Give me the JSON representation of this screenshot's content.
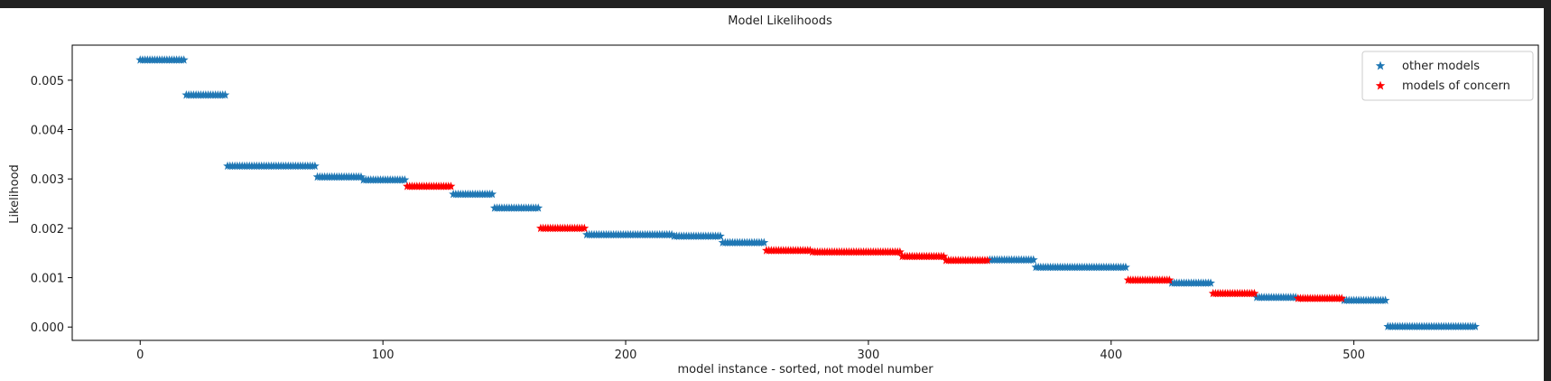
{
  "chart_data": {
    "type": "scatter",
    "title": "Model Likelihoods",
    "xlabel": "model instance - sorted, not model number",
    "ylabel": "Likelihood",
    "xlim": [
      -28,
      576
    ],
    "ylim": [
      -0.00027,
      0.00571
    ],
    "xticks": [
      0,
      100,
      200,
      300,
      400,
      500
    ],
    "yticks": [
      0.0,
      0.001,
      0.002,
      0.003,
      0.004,
      0.005
    ],
    "ytick_labels": [
      "0.000",
      "0.001",
      "0.002",
      "0.003",
      "0.004",
      "0.005"
    ],
    "xtick_labels": [
      "0",
      "100",
      "200",
      "300",
      "400",
      "500"
    ],
    "grid": false,
    "legend_position": "top-right",
    "marker": "star",
    "series": [
      {
        "name": "other models",
        "color": "#1f77b4",
        "segments": [
          {
            "x_start": 0,
            "x_end": 18,
            "y": 0.00541
          },
          {
            "x_start": 19,
            "x_end": 35,
            "y": 0.0047
          },
          {
            "x_start": 36,
            "x_end": 72,
            "y": 0.00326
          },
          {
            "x_start": 73,
            "x_end": 91,
            "y": 0.00304
          },
          {
            "x_start": 92,
            "x_end": 109,
            "y": 0.00298
          },
          {
            "x_start": 129,
            "x_end": 145,
            "y": 0.00269
          },
          {
            "x_start": 146,
            "x_end": 164,
            "y": 0.00241
          },
          {
            "x_start": 184,
            "x_end": 219,
            "y": 0.00187
          },
          {
            "x_start": 220,
            "x_end": 239,
            "y": 0.00184
          },
          {
            "x_start": 240,
            "x_end": 257,
            "y": 0.00171
          },
          {
            "x_start": 350,
            "x_end": 368,
            "y": 0.00136
          },
          {
            "x_start": 369,
            "x_end": 406,
            "y": 0.00121
          },
          {
            "x_start": 425,
            "x_end": 441,
            "y": 0.00089
          },
          {
            "x_start": 460,
            "x_end": 476,
            "y": 0.0006
          },
          {
            "x_start": 496,
            "x_end": 513,
            "y": 0.00054
          },
          {
            "x_start": 514,
            "x_end": 550,
            "y": 1e-05
          }
        ]
      },
      {
        "name": "models of concern",
        "color": "#ff0000",
        "segments": [
          {
            "x_start": 110,
            "x_end": 128,
            "y": 0.00285
          },
          {
            "x_start": 165,
            "x_end": 183,
            "y": 0.002
          },
          {
            "x_start": 258,
            "x_end": 276,
            "y": 0.00155
          },
          {
            "x_start": 277,
            "x_end": 313,
            "y": 0.00152
          },
          {
            "x_start": 314,
            "x_end": 331,
            "y": 0.00143
          },
          {
            "x_start": 332,
            "x_end": 349,
            "y": 0.00135
          },
          {
            "x_start": 407,
            "x_end": 424,
            "y": 0.00095
          },
          {
            "x_start": 442,
            "x_end": 459,
            "y": 0.00068
          },
          {
            "x_start": 477,
            "x_end": 495,
            "y": 0.00058
          }
        ]
      }
    ]
  }
}
